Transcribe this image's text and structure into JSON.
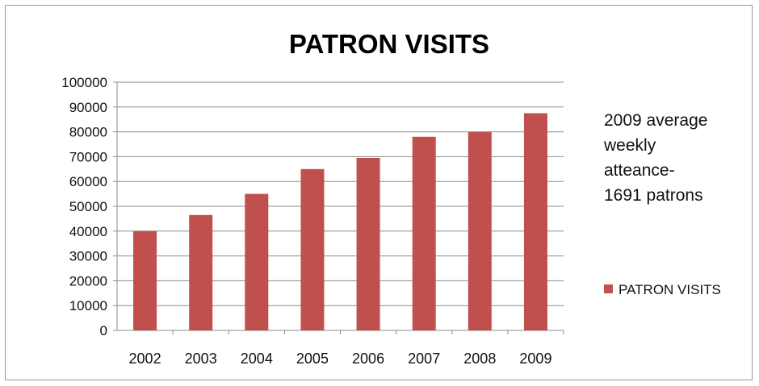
{
  "chart_data": {
    "type": "bar",
    "title": "PATRON VISITS",
    "categories": [
      "2002",
      "2003",
      "2004",
      "2005",
      "2006",
      "2007",
      "2008",
      "2009"
    ],
    "series": [
      {
        "name": "PATRON VISITS",
        "color": "#c0504d",
        "values": [
          40000,
          46500,
          55000,
          65000,
          69500,
          78000,
          80000,
          87500
        ]
      }
    ],
    "ylim": [
      0,
      100000
    ],
    "yticks": [
      "100000",
      "90000",
      "80000",
      "70000",
      "60000",
      "50000",
      "40000",
      "30000",
      "20000",
      "10000",
      "0"
    ],
    "grid": true,
    "legend": "right"
  },
  "annotation": {
    "lines": [
      "2009 average",
      "weekly",
      "atteance-",
      "1691 patrons"
    ]
  }
}
